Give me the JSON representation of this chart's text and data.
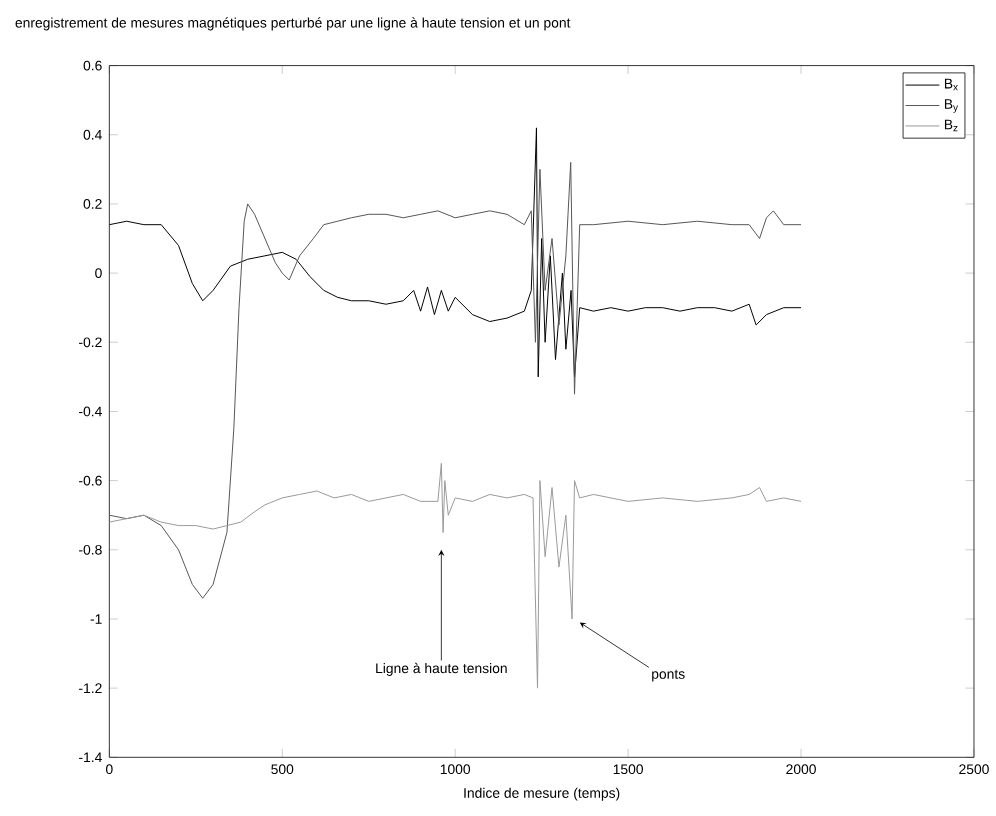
{
  "chart_data": {
    "type": "line",
    "title": "enregistrement de mesures magnétiques perturbé par une ligne à haute tension et un pont",
    "xlabel": "Indice de mesure (temps)",
    "xlim": [
      0,
      2500
    ],
    "ylim": [
      -1.4,
      0.6
    ],
    "xticks": [
      0,
      500,
      1000,
      1500,
      2000,
      2500
    ],
    "yticks": [
      -1.4,
      -1.2,
      -1,
      -0.8,
      -0.6,
      -0.4,
      -0.2,
      0,
      0.2,
      0.4,
      0.6
    ],
    "legend": "top right",
    "grid": false,
    "annotations": [
      {
        "text": "Ligne à haute tension",
        "x": 960,
        "y": -0.8
      },
      {
        "text": "ponts",
        "x": 1360,
        "y": -1.01
      }
    ],
    "series": [
      {
        "name": "B$_{x}$",
        "color": "#000000",
        "x": [
          0,
          50,
          100,
          150,
          200,
          240,
          270,
          300,
          350,
          400,
          450,
          500,
          540,
          580,
          620,
          660,
          700,
          750,
          800,
          850,
          880,
          900,
          920,
          940,
          960,
          980,
          1000,
          1050,
          1100,
          1150,
          1200,
          1220,
          1235,
          1240,
          1250,
          1260,
          1275,
          1290,
          1310,
          1320,
          1335,
          1345,
          1360,
          1400,
          1450,
          1500,
          1550,
          1600,
          1650,
          1700,
          1750,
          1800,
          1850,
          1870,
          1900,
          1950,
          2000
        ],
        "values": [
          0.14,
          0.15,
          0.14,
          0.14,
          0.08,
          -0.03,
          -0.08,
          -0.05,
          0.02,
          0.04,
          0.05,
          0.06,
          0.04,
          -0.01,
          -0.05,
          -0.07,
          -0.08,
          -0.08,
          -0.09,
          -0.08,
          -0.05,
          -0.11,
          -0.04,
          -0.12,
          -0.05,
          -0.11,
          -0.07,
          -0.12,
          -0.14,
          -0.13,
          -0.11,
          -0.05,
          0.42,
          -0.3,
          0.1,
          -0.2,
          0.05,
          -0.25,
          0.0,
          -0.22,
          -0.05,
          -0.3,
          -0.1,
          -0.11,
          -0.1,
          -0.11,
          -0.1,
          -0.1,
          -0.11,
          -0.1,
          -0.1,
          -0.11,
          -0.09,
          -0.15,
          -0.12,
          -0.1,
          -0.1
        ]
      },
      {
        "name": "B$_{y}$",
        "color": "#555555",
        "x": [
          0,
          50,
          100,
          150,
          200,
          240,
          270,
          300,
          340,
          360,
          375,
          390,
          400,
          420,
          450,
          480,
          500,
          520,
          550,
          590,
          620,
          660,
          700,
          750,
          800,
          850,
          900,
          950,
          1000,
          1050,
          1100,
          1150,
          1200,
          1220,
          1232,
          1245,
          1260,
          1280,
          1300,
          1320,
          1334,
          1345,
          1360,
          1400,
          1500,
          1600,
          1700,
          1800,
          1850,
          1880,
          1900,
          1920,
          1950,
          2000
        ],
        "values": [
          -0.7,
          -0.71,
          -0.7,
          -0.73,
          -0.8,
          -0.9,
          -0.94,
          -0.9,
          -0.75,
          -0.45,
          -0.1,
          0.15,
          0.2,
          0.17,
          0.1,
          0.03,
          0.0,
          -0.02,
          0.05,
          0.1,
          0.14,
          0.15,
          0.16,
          0.17,
          0.17,
          0.16,
          0.17,
          0.18,
          0.16,
          0.17,
          0.18,
          0.17,
          0.14,
          0.18,
          -0.2,
          0.3,
          -0.05,
          0.1,
          -0.15,
          0.05,
          0.32,
          -0.35,
          0.14,
          0.14,
          0.15,
          0.14,
          0.15,
          0.14,
          0.14,
          0.1,
          0.16,
          0.18,
          0.14,
          0.14
        ]
      },
      {
        "name": "B$_{z}$",
        "color": "#999999",
        "x": [
          0,
          50,
          100,
          150,
          200,
          250,
          300,
          340,
          380,
          420,
          450,
          500,
          550,
          600,
          650,
          700,
          750,
          800,
          850,
          900,
          950,
          960,
          965,
          970,
          980,
          1000,
          1050,
          1100,
          1150,
          1200,
          1225,
          1238,
          1245,
          1260,
          1280,
          1300,
          1320,
          1338,
          1345,
          1360,
          1400,
          1500,
          1600,
          1700,
          1800,
          1850,
          1880,
          1900,
          1950,
          2000
        ],
        "values": [
          -0.72,
          -0.71,
          -0.7,
          -0.72,
          -0.73,
          -0.73,
          -0.74,
          -0.73,
          -0.72,
          -0.69,
          -0.67,
          -0.65,
          -0.64,
          -0.63,
          -0.65,
          -0.64,
          -0.66,
          -0.65,
          -0.64,
          -0.66,
          -0.66,
          -0.55,
          -0.75,
          -0.6,
          -0.7,
          -0.65,
          -0.66,
          -0.64,
          -0.65,
          -0.64,
          -0.65,
          -1.2,
          -0.6,
          -0.82,
          -0.62,
          -0.85,
          -0.7,
          -1.0,
          -0.6,
          -0.65,
          -0.64,
          -0.66,
          -0.65,
          -0.66,
          -0.65,
          -0.64,
          -0.62,
          -0.66,
          -0.65,
          -0.66
        ]
      }
    ]
  }
}
